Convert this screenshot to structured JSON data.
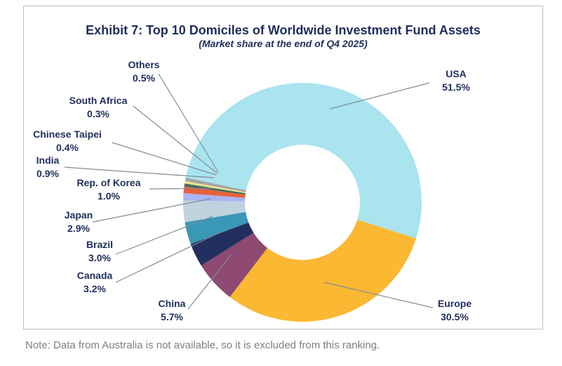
{
  "chart_data": {
    "type": "pie",
    "donut": true,
    "title": "Exhibit 7: Top 10 Domiciles of Worldwide Investment Fund Assets",
    "subtitle": "(Market share at the end of Q4 2025)",
    "categories": [
      "USA",
      "Europe",
      "China",
      "Canada",
      "Brazil",
      "Japan",
      "Rep. of Korea",
      "India",
      "Chinese Taipei",
      "South Africa",
      "Others"
    ],
    "values": [
      51.5,
      30.5,
      5.7,
      3.2,
      3.0,
      2.9,
      1.0,
      0.9,
      0.4,
      0.3,
      0.5
    ],
    "value_labels": [
      "51.5%",
      "30.5%",
      "5.7%",
      "3.2%",
      "3.0%",
      "2.9%",
      "1.0%",
      "0.9%",
      "0.4%",
      "0.3%",
      "0.5%"
    ],
    "colors": [
      "#a9e4ef",
      "#fbb833",
      "#8e4a72",
      "#23305f",
      "#3a97b5",
      "#bfd3de",
      "#aab4f0",
      "#e8603c",
      "#3e6e5a",
      "#f2e88a",
      "#a6a6a6"
    ],
    "unit": "%"
  },
  "note": "Note: Data from Australia is not available, so it is excluded from this ranking."
}
